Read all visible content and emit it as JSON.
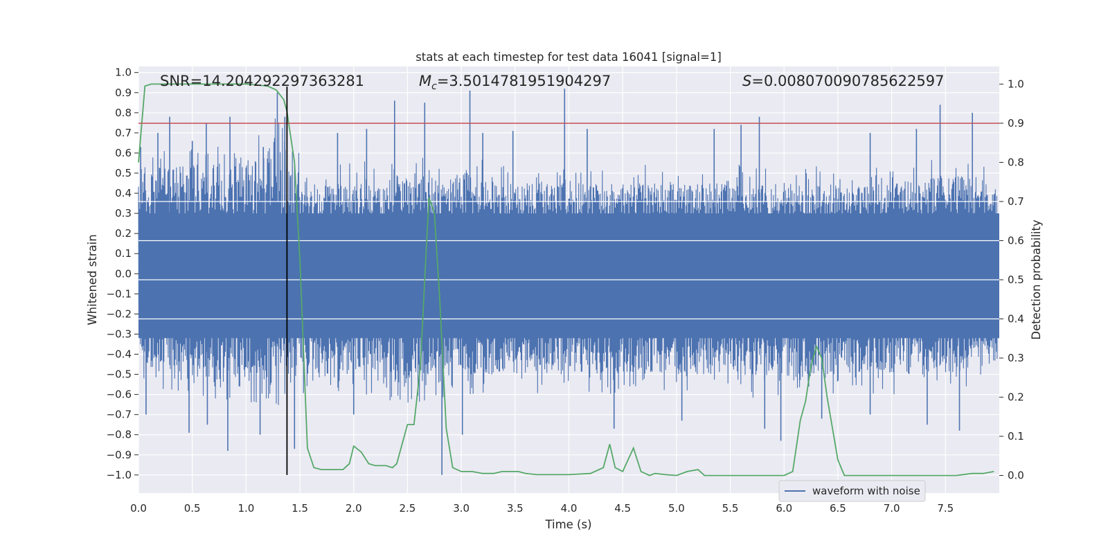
{
  "chart_data": {
    "type": "line",
    "title": "stats at each timestep for test data 16041 [signal=1]",
    "xlabel": "Time (s)",
    "ylabel": "Whitened strain",
    "y2label": "Detection probability",
    "xlim": [
      0,
      8.0
    ],
    "ylim": [
      -1.09,
      1.03
    ],
    "y2lim": [
      -0.045,
      1.045
    ],
    "x_ticks": [
      "0.0",
      "0.5",
      "1.0",
      "1.5",
      "2.0",
      "2.5",
      "3.0",
      "3.5",
      "4.0",
      "4.5",
      "5.0",
      "5.5",
      "6.0",
      "6.5",
      "7.0",
      "7.5"
    ],
    "y_ticks": [
      "1.0",
      "0.9",
      "0.8",
      "0.7",
      "0.6",
      "0.5",
      "0.4",
      "0.3",
      "0.2",
      "0.1",
      "0.0",
      "-0.1",
      "-0.2",
      "-0.3",
      "-0.4",
      "-0.5",
      "-0.6",
      "-0.7",
      "-0.8",
      "-0.9",
      "-1.0"
    ],
    "y2_ticks": [
      "1.0",
      "0.9",
      "0.8",
      "0.7",
      "0.6",
      "0.5",
      "0.4",
      "0.3",
      "0.2",
      "0.1",
      "0.0"
    ],
    "grid": true,
    "legend_placement": "lower-right",
    "annotations": {
      "snr": "SNR=14.204292297363281",
      "mc_symbol": "M",
      "mc_sub": "c",
      "mc_value": "=3.5014781951904297",
      "s_symbol": "S",
      "s_value": "=0.008070090785622597"
    },
    "series": [
      {
        "name": "waveform with noise",
        "axis": "left",
        "color": "#4c72b0",
        "envelope_top": [
          [
            0,
            0.45
          ],
          [
            0.25,
            0.55
          ],
          [
            0.5,
            0.55
          ],
          [
            0.75,
            0.55
          ],
          [
            1.0,
            0.6
          ],
          [
            1.2,
            0.65
          ],
          [
            1.3,
            0.75
          ],
          [
            1.4,
            0.6
          ],
          [
            1.6,
            0.45
          ],
          [
            2.0,
            0.45
          ],
          [
            2.5,
            0.5
          ],
          [
            3.0,
            0.5
          ],
          [
            3.5,
            0.45
          ],
          [
            4.0,
            0.45
          ],
          [
            4.5,
            0.45
          ],
          [
            5.0,
            0.45
          ],
          [
            5.5,
            0.45
          ],
          [
            6.0,
            0.45
          ],
          [
            6.5,
            0.45
          ],
          [
            7.0,
            0.45
          ],
          [
            7.5,
            0.5
          ],
          [
            8.0,
            0.45
          ]
        ],
        "envelope_bottom": [
          [
            0,
            -0.45
          ],
          [
            0.5,
            -0.55
          ],
          [
            1.0,
            -0.55
          ],
          [
            1.3,
            -0.6
          ],
          [
            1.5,
            -0.5
          ],
          [
            2.0,
            -0.5
          ],
          [
            2.5,
            -0.55
          ],
          [
            3.0,
            -0.5
          ],
          [
            3.5,
            -0.5
          ],
          [
            4.0,
            -0.5
          ],
          [
            4.5,
            -0.5
          ],
          [
            5.0,
            -0.5
          ],
          [
            5.5,
            -0.5
          ],
          [
            6.0,
            -0.55
          ],
          [
            6.5,
            -0.5
          ],
          [
            7.0,
            -0.5
          ],
          [
            7.5,
            -0.5
          ],
          [
            8.0,
            -0.45
          ]
        ],
        "peaks": [
          [
            0.02,
            0.63
          ],
          [
            0.18,
            0.7
          ],
          [
            0.29,
            0.78
          ],
          [
            0.5,
            0.66
          ],
          [
            0.63,
            0.75
          ],
          [
            0.85,
            0.78
          ],
          [
            1.16,
            0.63
          ],
          [
            1.29,
            0.9
          ],
          [
            1.36,
            0.78
          ],
          [
            1.85,
            0.7
          ],
          [
            2.12,
            0.72
          ],
          [
            2.38,
            0.86
          ],
          [
            2.66,
            0.85
          ],
          [
            3.08,
            0.91
          ],
          [
            3.2,
            0.7
          ],
          [
            3.48,
            0.71
          ],
          [
            3.96,
            0.92
          ],
          [
            4.17,
            0.72
          ],
          [
            5.35,
            0.72
          ],
          [
            5.6,
            0.74
          ],
          [
            5.77,
            0.78
          ],
          [
            6.8,
            0.7
          ],
          [
            7.23,
            0.72
          ],
          [
            7.45,
            0.84
          ],
          [
            7.75,
            0.8
          ]
        ],
        "troughs": [
          [
            0.07,
            -0.7
          ],
          [
            0.47,
            -0.79
          ],
          [
            0.64,
            -0.75
          ],
          [
            0.83,
            -0.88
          ],
          [
            1.13,
            -0.8
          ],
          [
            1.45,
            -0.87
          ],
          [
            2.0,
            -0.7
          ],
          [
            2.82,
            -1.0
          ],
          [
            3.01,
            -0.8
          ],
          [
            4.42,
            -0.77
          ],
          [
            5.05,
            -0.73
          ],
          [
            5.82,
            -0.77
          ],
          [
            5.97,
            -0.83
          ],
          [
            6.35,
            -0.72
          ],
          [
            6.8,
            -0.7
          ],
          [
            7.33,
            -0.75
          ],
          [
            7.63,
            -0.78
          ]
        ]
      },
      {
        "name": "detection probability",
        "axis": "right",
        "color": "#55a868",
        "x": [
          0,
          0.06,
          0.12,
          0.2,
          0.4,
          0.7,
          1.0,
          1.2,
          1.28,
          1.35,
          1.38,
          1.45,
          1.5,
          1.57,
          1.63,
          1.7,
          1.8,
          1.9,
          1.96,
          2.0,
          2.07,
          2.14,
          2.2,
          2.3,
          2.36,
          2.4,
          2.5,
          2.56,
          2.62,
          2.66,
          2.7,
          2.75,
          2.8,
          2.86,
          2.92,
          3.0,
          3.1,
          3.2,
          3.3,
          3.38,
          3.46,
          3.53,
          3.6,
          3.7,
          3.8,
          4.0,
          4.2,
          4.32,
          4.38,
          4.43,
          4.5,
          4.6,
          4.67,
          4.75,
          4.8,
          4.9,
          5.0,
          5.1,
          5.2,
          5.26,
          5.4,
          5.6,
          5.8,
          6.0,
          6.08,
          6.15,
          6.2,
          6.25,
          6.3,
          6.35,
          6.4,
          6.5,
          6.56,
          6.62,
          6.8,
          7.0,
          7.3,
          7.6,
          7.75,
          7.85,
          7.95
        ],
        "y": [
          0.8,
          0.995,
          1.0,
          1.0,
          1.0,
          1.0,
          1.0,
          0.995,
          0.985,
          0.96,
          0.93,
          0.8,
          0.55,
          0.07,
          0.02,
          0.015,
          0.015,
          0.015,
          0.03,
          0.075,
          0.06,
          0.03,
          0.025,
          0.025,
          0.02,
          0.03,
          0.13,
          0.13,
          0.28,
          0.5,
          0.71,
          0.67,
          0.45,
          0.12,
          0.02,
          0.01,
          0.01,
          0.005,
          0.005,
          0.01,
          0.01,
          0.01,
          0.005,
          0.002,
          0.002,
          0.002,
          0.005,
          0.02,
          0.08,
          0.02,
          0.01,
          0.07,
          0.01,
          0.0,
          0.005,
          0.002,
          0.0,
          0.01,
          0.015,
          0.0,
          0.0,
          0.0,
          0.0,
          0.0,
          0.01,
          0.14,
          0.19,
          0.28,
          0.33,
          0.3,
          0.2,
          0.04,
          0.0,
          0.0,
          0.0,
          0.0,
          0.0,
          0.0,
          0.005,
          0.005,
          0.01
        ]
      }
    ],
    "threshold_line": {
      "axis": "right",
      "value": 0.9,
      "color": "#c44e52"
    },
    "marker_line": {
      "x": 1.38,
      "y_from": -1.0,
      "y_to": 0.93,
      "color": "#000000"
    }
  }
}
